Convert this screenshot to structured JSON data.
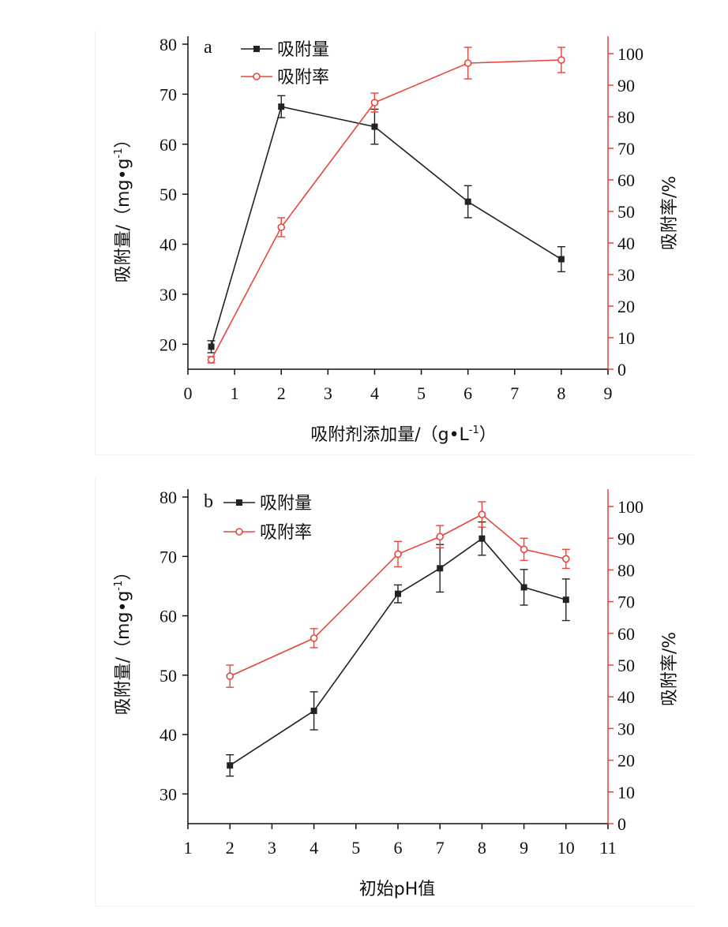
{
  "colors": {
    "black_series": "#222222",
    "red_series": "#e8453c",
    "axis": "#111111",
    "right_axis": "#e8453c"
  },
  "chart_data": [
    {
      "type": "line",
      "panel_label": "a",
      "xlabel": "吸附剂添加量/（g•L",
      "xlabel_sup": "-1",
      "xlabel_end": "）",
      "ylabel_left": "吸附量/（mg•g",
      "ylabel_left_sup": "-1",
      "ylabel_left_end": "）",
      "ylabel_right": "吸附率/%",
      "xlim": [
        0,
        9
      ],
      "ylim_left": [
        15,
        80
      ],
      "ylim_right": [
        0,
        103
      ],
      "x_ticks": [
        "0",
        "1",
        "2",
        "3",
        "4",
        "5",
        "6",
        "7",
        "8",
        "9"
      ],
      "y_left_ticks": [
        "20",
        "30",
        "40",
        "50",
        "60",
        "70",
        "80"
      ],
      "y_right_ticks": [
        "0",
        "10",
        "20",
        "30",
        "40",
        "50",
        "60",
        "70",
        "80",
        "90",
        "100"
      ],
      "series": [
        {
          "name": "吸附量",
          "axis": "left",
          "marker": "square",
          "x": [
            0.5,
            2,
            4,
            6,
            8
          ],
          "values": [
            19.5,
            67.5,
            63.5,
            48.5,
            37
          ],
          "errors": [
            1.2,
            2.2,
            3.5,
            3.2,
            2.5
          ]
        },
        {
          "name": "吸附率",
          "axis": "right",
          "marker": "circle",
          "x": [
            0.5,
            2,
            4,
            6,
            8
          ],
          "values": [
            3,
            45,
            84.5,
            97,
            98
          ],
          "errors": [
            1,
            3,
            3,
            5,
            4
          ]
        }
      ]
    },
    {
      "type": "line",
      "panel_label": "b",
      "xlabel": "初始pH值",
      "ylabel_left": "吸附量/（mg•g",
      "ylabel_left_sup": "-1",
      "ylabel_left_end": "）",
      "ylabel_right": "吸附率/%",
      "xlim": [
        1,
        11
      ],
      "ylim_left": [
        25,
        80
      ],
      "ylim_right": [
        0,
        103
      ],
      "x_ticks": [
        "1",
        "2",
        "3",
        "4",
        "5",
        "6",
        "7",
        "8",
        "9",
        "10",
        "11"
      ],
      "y_left_ticks": [
        "30",
        "40",
        "50",
        "60",
        "70",
        "80"
      ],
      "y_right_ticks": [
        "0",
        "10",
        "20",
        "30",
        "40",
        "50",
        "60",
        "70",
        "80",
        "90",
        "100"
      ],
      "series": [
        {
          "name": "吸附量",
          "axis": "left",
          "marker": "square",
          "x": [
            2,
            4,
            6,
            7,
            8,
            9,
            10
          ],
          "values": [
            34.8,
            44,
            63.7,
            68,
            73,
            64.8,
            62.7
          ],
          "errors": [
            1.8,
            3.2,
            1.5,
            4,
            2.8,
            3,
            3.5
          ]
        },
        {
          "name": "吸附率",
          "axis": "right",
          "marker": "circle",
          "x": [
            2,
            4,
            6,
            7,
            8,
            9,
            10
          ],
          "values": [
            46.5,
            58.5,
            85,
            90.5,
            97.5,
            86.5,
            83.5
          ],
          "errors": [
            3.5,
            3,
            4,
            3.5,
            4,
            3.5,
            3
          ]
        }
      ]
    }
  ]
}
